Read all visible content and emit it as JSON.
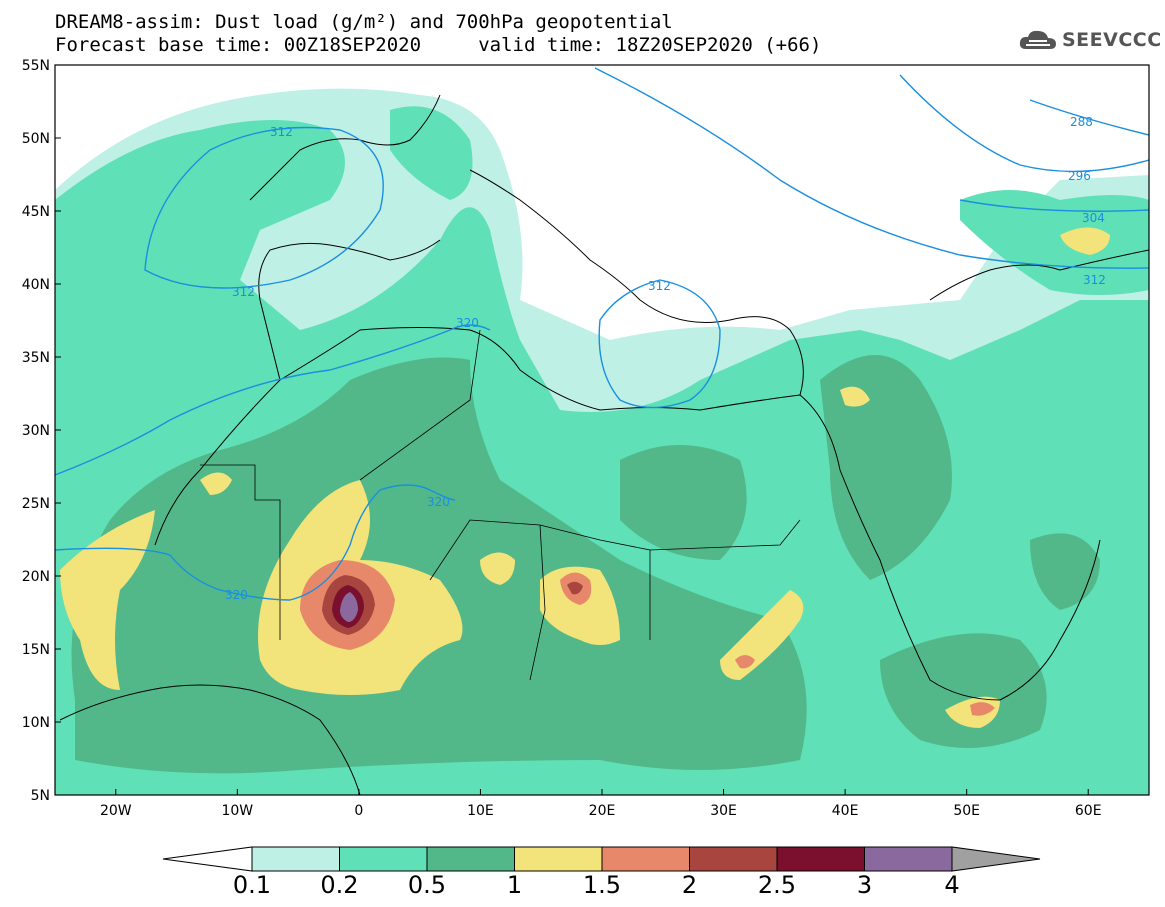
{
  "title": {
    "line1": "DREAM8-assim: Dust load (g/m²) and 700hPa geopotential",
    "line2": "Forecast base time: 00Z18SEP2020     valid time: 18Z20SEP2020 (+66)"
  },
  "logo": {
    "icon": "cloud-icon",
    "text": "SEEVCCC"
  },
  "map": {
    "lat_labels": [
      "55N",
      "50N",
      "45N",
      "40N",
      "35N",
      "30N",
      "25N",
      "20N",
      "15N",
      "10N",
      "5N"
    ],
    "lon_labels": [
      "20W",
      "10W",
      "0",
      "10E",
      "20E",
      "30E",
      "40E",
      "50E",
      "60E"
    ],
    "extent": {
      "lon": [
        -25,
        65
      ],
      "lat": [
        5,
        55
      ]
    },
    "geopotential_contour_labels": [
      "312",
      "312",
      "320",
      "312",
      "320",
      "320",
      "288",
      "296",
      "304",
      "312"
    ],
    "contour_color": "#1a8fe0"
  },
  "colorbar": {
    "labels": [
      "0.1",
      "0.2",
      "0.5",
      "1",
      "1.5",
      "2",
      "2.5",
      "3",
      "4"
    ],
    "colors": [
      "#bff0e6",
      "#5fe0b6",
      "#52b88a",
      "#f2e37a",
      "#e8886a",
      "#a8453e",
      "#7a0f2e",
      "#8a6a9e",
      "#a0a0a0"
    ]
  }
}
